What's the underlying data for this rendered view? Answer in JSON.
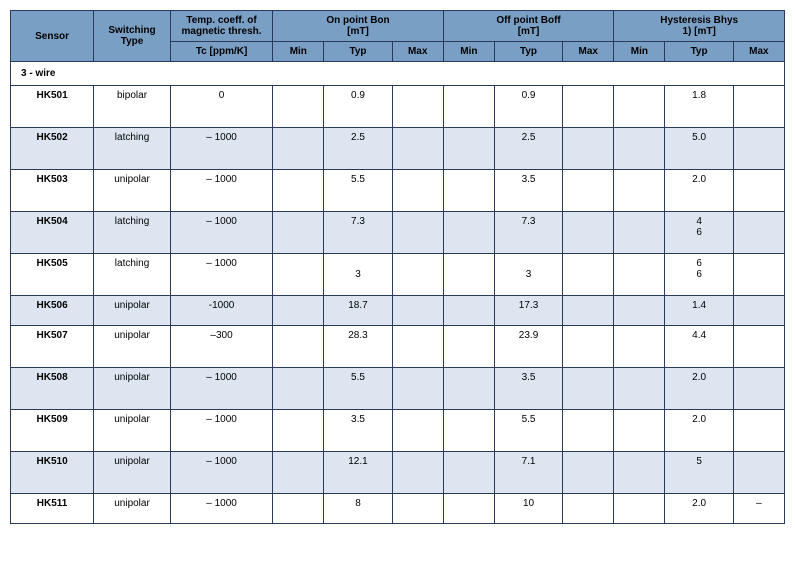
{
  "headers": {
    "sensor": "Sensor",
    "switching": "Switching Type",
    "tc_line1": "Temp. coeff. of magnetic thresh.",
    "tc_line2": "Tc [ppm/K]",
    "on_line1": "On point Bon",
    "on_line2": "[mT]",
    "off_line1": "Off point Boff",
    "off_line2": "[mT]",
    "hys_line1": "Hysteresis Bhys",
    "hys_line2": "1) [mT]",
    "min": "Min",
    "typ": "Typ",
    "max": "Max"
  },
  "section": "3 - wire",
  "rows": [
    {
      "sensor": "HK501",
      "switch": "bipolar",
      "tc": "0",
      "on_min": "",
      "on_typ": "0.9",
      "on_max": "",
      "off_min": "",
      "off_typ": "0.9",
      "off_max": "",
      "h_min": "",
      "h_typ": "1.8",
      "h_max": "",
      "alt": false,
      "tall": true
    },
    {
      "sensor": "HK502",
      "switch": "latching",
      "tc": "– 1000",
      "on_min": "",
      "on_typ": "2.5",
      "on_max": "",
      "off_min": "",
      "off_typ": "2.5",
      "off_max": "",
      "h_min": "",
      "h_typ": "5.0",
      "h_max": "",
      "alt": true,
      "tall": true
    },
    {
      "sensor": "HK503",
      "switch": "unipolar",
      "tc": "– 1000",
      "on_min": "",
      "on_typ": "5.5",
      "on_max": "",
      "off_min": "",
      "off_typ": "3.5",
      "off_max": "",
      "h_min": "",
      "h_typ": "2.0",
      "h_max": "",
      "alt": false,
      "tall": true
    },
    {
      "sensor": "HK504",
      "switch": "latching",
      "tc": "– 1000",
      "on_min": "",
      "on_typ": "7.3",
      "on_max": "",
      "off_min": "",
      "off_typ": "7.3",
      "off_max": "",
      "h_min": "",
      "h_typ": "4\n6",
      "h_max": "",
      "alt": true,
      "tall": true
    },
    {
      "sensor": "HK505",
      "switch": "latching",
      "tc": "– 1000",
      "on_min": "",
      "on_typ": "\n3",
      "on_max": "",
      "off_min": "",
      "off_typ": "\n3",
      "off_max": "",
      "h_min": "",
      "h_typ": "6\n6",
      "h_max": "",
      "alt": false,
      "tall": true
    },
    {
      "sensor": "HK506",
      "switch": "unipolar",
      "tc": "-1000",
      "on_min": "",
      "on_typ": "18.7",
      "on_max": "",
      "off_min": "",
      "off_typ": "17.3",
      "off_max": "",
      "h_min": "",
      "h_typ": "1.4",
      "h_max": "",
      "alt": true,
      "tall": false
    },
    {
      "sensor": "HK507",
      "switch": "unipolar",
      "tc": "–300",
      "on_min": "",
      "on_typ": "28.3",
      "on_max": "",
      "off_min": "",
      "off_typ": "23.9",
      "off_max": "",
      "h_min": "",
      "h_typ": "4.4",
      "h_max": "",
      "alt": false,
      "tall": true
    },
    {
      "sensor": "HK508",
      "switch": "unipolar",
      "tc": "– 1000",
      "on_min": "",
      "on_typ": "5.5",
      "on_max": "",
      "off_min": "",
      "off_typ": "3.5",
      "off_max": "",
      "h_min": "",
      "h_typ": "2.0",
      "h_max": "",
      "alt": true,
      "tall": true
    },
    {
      "sensor": "HK509",
      "switch": "unipolar",
      "tc": "– 1000",
      "on_min": "",
      "on_typ": "3.5",
      "on_max": "",
      "off_min": "",
      "off_typ": "5.5",
      "off_max": "",
      "h_min": "",
      "h_typ": "2.0",
      "h_max": "",
      "alt": false,
      "tall": true
    },
    {
      "sensor": "HK510",
      "switch": "unipolar",
      "tc": "– 1000",
      "on_min": "",
      "on_typ": "12.1",
      "on_max": "",
      "off_min": "",
      "off_typ": "7.1",
      "off_max": "",
      "h_min": "",
      "h_typ": "5",
      "h_max": "",
      "alt": true,
      "tall": true
    },
    {
      "sensor": "HK511",
      "switch": "unipolar",
      "tc": "– 1000",
      "on_min": "",
      "on_typ": "8",
      "on_max": "",
      "off_min": "",
      "off_typ": "10",
      "off_max": "",
      "h_min": "",
      "h_typ": "2.0",
      "h_max": "–",
      "alt": false,
      "tall": false
    }
  ],
  "colors": {
    "header_bg": "#7a9fc4",
    "alt_bg": "#dde6f0",
    "border": "#2a3a5a"
  }
}
